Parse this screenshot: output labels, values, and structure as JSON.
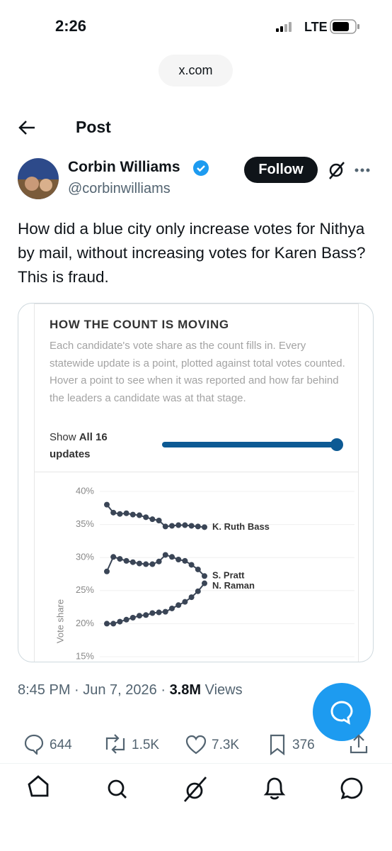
{
  "status_bar": {
    "time": "2:26",
    "network": "LTE"
  },
  "browser": {
    "url": "x.com"
  },
  "header": {
    "title": "Post"
  },
  "post": {
    "author": {
      "name": "Corbin Williams",
      "handle": "@corbinwilliams"
    },
    "follow_button": "Follow",
    "text": "How did a blue city only increase votes for Nithya by mail, without increasing votes for Karen Bass? This is fraud.",
    "card": {
      "title": "HOW THE COUNT IS MOVING",
      "description": "Each candidate's vote share as the count fills in. Every statewide update is a point, plotted against total votes counted. Hover a point to see when it was reported and how far behind the leaders a candidate was at that stage.",
      "show_label": "Show",
      "show_value": "All 16 updates",
      "chart": {
        "type": "line",
        "y_label": "Vote share",
        "categories": [
          null,
          null,
          null,
          null,
          null,
          null,
          null,
          null,
          null,
          null,
          null,
          null,
          null,
          null,
          null,
          null
        ],
        "ylim": [
          15,
          40
        ],
        "yticks": [
          {
            "value": 15,
            "label": "15%"
          },
          {
            "value": 20,
            "label": "20%"
          },
          {
            "value": 25,
            "label": "25%"
          },
          {
            "value": 30,
            "label": "30%"
          },
          {
            "value": 35,
            "label": "35%"
          },
          {
            "value": 40,
            "label": "40%"
          }
        ],
        "grid": true,
        "series": [
          {
            "name": "K. Ruth Bass",
            "color": "#3a4556",
            "values": [
              38.0,
              36.8,
              36.6,
              36.7,
              36.5,
              36.4,
              36.1,
              35.8,
              35.6,
              34.7,
              34.8,
              34.9,
              34.9,
              34.8,
              34.7,
              34.6
            ]
          },
          {
            "name": "S. Pratt",
            "color": "#3a4556",
            "values": [
              27.9,
              30.1,
              29.8,
              29.5,
              29.3,
              29.1,
              29.0,
              29.0,
              29.4,
              30.4,
              30.1,
              29.7,
              29.5,
              28.9,
              28.2,
              27.2
            ]
          },
          {
            "name": "N. Raman",
            "color": "#3a4556",
            "values": [
              20.0,
              20.0,
              20.3,
              20.6,
              20.9,
              21.2,
              21.3,
              21.6,
              21.7,
              21.8,
              22.3,
              22.8,
              23.3,
              24.0,
              24.9,
              26.1
            ]
          }
        ]
      }
    },
    "meta": {
      "timestamp": "8:45 PM · Jun 7, 2026 · ",
      "views": "3.8M",
      "views_label": "Views"
    },
    "stats": {
      "replies": "644",
      "reposts": "1.5K",
      "likes": "7.3K",
      "bookmarks": "376"
    }
  }
}
